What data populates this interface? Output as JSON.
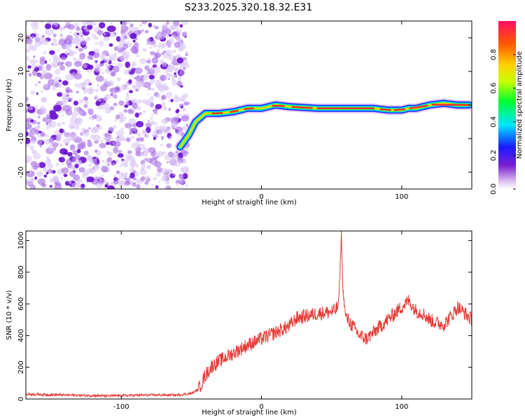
{
  "title": "S233.2025.320.18.32.E31",
  "chart_data": [
    {
      "type": "heatmap",
      "name": "spectrogram",
      "xlabel": "Height of straight line (km)",
      "ylabel": "Frequency (Hz)",
      "xlim": [
        -168,
        150
      ],
      "ylim": [
        -25,
        25
      ],
      "x_ticks": [
        -100,
        0,
        100
      ],
      "y_ticks": [
        -20,
        -10,
        0,
        10,
        20
      ],
      "noise_region_x": [
        -168,
        -53
      ],
      "ridge": {
        "x": [
          -58,
          -52,
          -47,
          -40,
          -30,
          -20,
          -10,
          0,
          10,
          20,
          40,
          60,
          80,
          90,
          100,
          105,
          110,
          120,
          130,
          140,
          148
        ],
        "y": [
          -12.5,
          -9,
          -5,
          -2.5,
          -2.5,
          -2,
          -1,
          -1,
          0,
          -0.5,
          -1,
          -1,
          -1,
          -1.5,
          -1.5,
          -1,
          -1,
          0,
          0.5,
          0,
          0
        ]
      },
      "colorbar": {
        "label": "Normalized spectral amplitude",
        "range": [
          0,
          1
        ],
        "ticks": [
          "0.0",
          "0.2",
          "0.4",
          "0.6",
          "0.8"
        ]
      }
    },
    {
      "type": "line",
      "name": "snr",
      "xlabel": "Height of straight line (km)",
      "ylabel": "SNR (10 * v/v)",
      "xlim": [
        -168,
        150
      ],
      "ylim": [
        0,
        1060
      ],
      "x_ticks": [
        -100,
        0,
        100
      ],
      "y_ticks": [
        0,
        200,
        400,
        600,
        800,
        1000
      ],
      "color": "#e53935",
      "series": [
        {
          "name": "SNR",
          "x": [
            -168,
            -140,
            -110,
            -80,
            -60,
            -50,
            -45,
            -40,
            -35,
            -30,
            -20,
            -10,
            0,
            10,
            20,
            25,
            30,
            40,
            50,
            53,
            55,
            56,
            57,
            58,
            60,
            65,
            70,
            75,
            80,
            90,
            100,
            105,
            110,
            115,
            120,
            125,
            130,
            135,
            140,
            145,
            150
          ],
          "y": [
            30,
            25,
            20,
            25,
            25,
            35,
            60,
            150,
            210,
            240,
            290,
            340,
            380,
            420,
            460,
            510,
            520,
            540,
            550,
            560,
            600,
            800,
            1050,
            700,
            520,
            460,
            400,
            380,
            420,
            500,
            580,
            620,
            560,
            540,
            500,
            480,
            470,
            520,
            580,
            540,
            500
          ]
        }
      ]
    }
  ]
}
